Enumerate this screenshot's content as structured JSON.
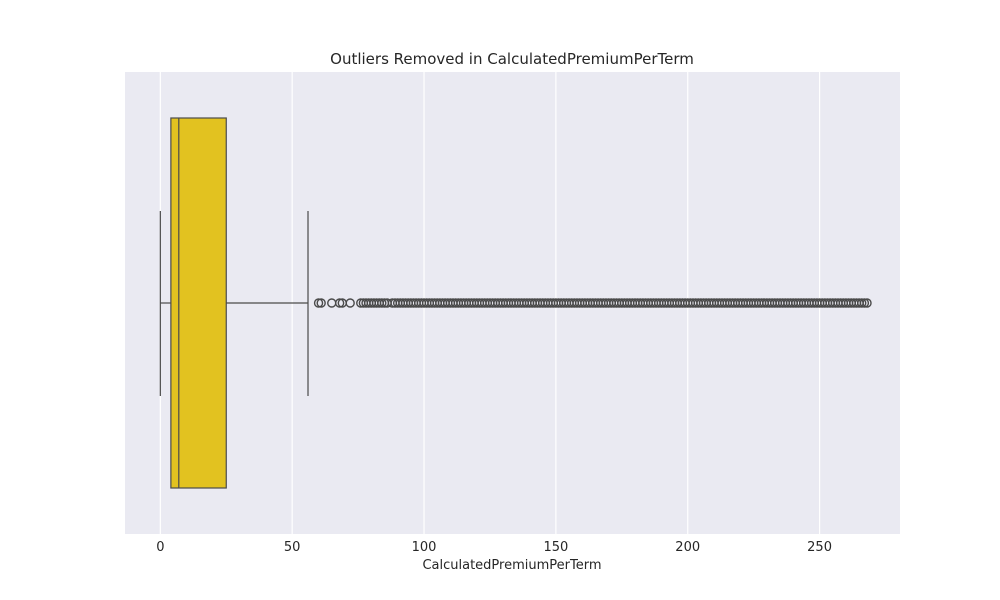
{
  "chart_data": {
    "type": "box",
    "title": "Outliers Removed in CalculatedPremiumPerTerm",
    "xlabel": "CalculatedPremiumPerTerm",
    "ylabel": "",
    "orientation": "horizontal",
    "xlim": [
      -13.4,
      280.5
    ],
    "x_ticks": [
      0,
      50,
      100,
      150,
      200,
      250
    ],
    "grid": true,
    "background": "#eaeaf2",
    "box_color": "#e2c220",
    "line_color": "#4a4a4a",
    "series": [
      {
        "whisker_low": 0,
        "q1": 4,
        "median": 7,
        "q3": 25,
        "whisker_high": 56,
        "outliers": [
          60,
          61,
          65,
          68,
          69,
          72,
          76,
          77,
          78,
          79,
          80,
          81,
          82,
          83,
          84,
          85,
          86,
          88,
          89,
          90,
          91,
          92,
          93,
          94,
          95,
          96,
          97,
          98,
          99,
          100,
          101,
          102,
          103,
          104,
          105,
          106,
          107,
          108,
          109,
          110,
          111,
          112,
          113,
          114,
          115,
          116,
          117,
          118,
          119,
          120,
          121,
          122,
          123,
          124,
          125,
          126,
          127,
          128,
          129,
          130,
          131,
          132,
          133,
          134,
          135,
          136,
          137,
          138,
          139,
          140,
          141,
          142,
          143,
          144,
          145,
          146,
          147,
          148,
          149,
          150,
          151,
          152,
          153,
          154,
          155,
          156,
          157,
          158,
          159,
          160,
          161,
          162,
          163,
          164,
          165,
          166,
          167,
          168,
          169,
          170,
          171,
          172,
          173,
          174,
          175,
          176,
          177,
          178,
          179,
          180,
          181,
          182,
          183,
          184,
          185,
          186,
          187,
          188,
          189,
          190,
          191,
          192,
          193,
          194,
          195,
          196,
          197,
          198,
          199,
          200,
          201,
          202,
          203,
          204,
          205,
          206,
          207,
          208,
          209,
          210,
          211,
          212,
          213,
          214,
          215,
          216,
          217,
          218,
          219,
          220,
          221,
          222,
          223,
          224,
          225,
          226,
          227,
          228,
          229,
          230,
          231,
          232,
          233,
          234,
          235,
          236,
          237,
          238,
          239,
          240,
          241,
          242,
          243,
          244,
          245,
          246,
          247,
          248,
          249,
          250,
          251,
          252,
          253,
          254,
          255,
          256,
          257,
          258,
          259,
          260,
          261,
          262,
          263,
          264,
          265,
          266,
          267,
          268
        ]
      }
    ]
  }
}
